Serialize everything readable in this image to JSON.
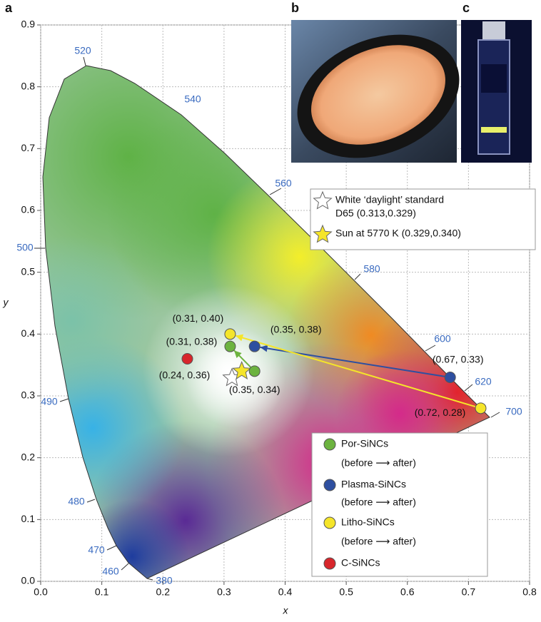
{
  "chart_data": {
    "type": "scatter",
    "panel_labels": [
      "a",
      "b",
      "c"
    ],
    "x_label": "x",
    "y_label": "y",
    "xlim": [
      0,
      0.8
    ],
    "ylim": [
      0,
      0.9
    ],
    "xticks": [
      {
        "value": 0,
        "label": "0.0"
      },
      0.1,
      0.2,
      0.3,
      0.4,
      0.5,
      0.6,
      0.7,
      0.8
    ],
    "yticks": [
      {
        "value": 0,
        "label": "0.0"
      },
      0.1,
      0.2,
      0.3,
      0.4,
      0.5,
      0.6,
      0.7,
      0.8,
      0.9
    ],
    "grid": true,
    "wavelength_labels": [
      "520",
      "540",
      "560",
      "580",
      "600",
      "620",
      "700",
      "500",
      "490",
      "480",
      "470",
      "460",
      "380"
    ],
    "stars": [
      {
        "label_lines": [
          "White ‘daylight’ standard",
          "D65 (0.313,0.329)"
        ],
        "x": 0.313,
        "y": 0.329,
        "color": "#ffffff"
      },
      {
        "label_lines": [
          "Sun at 5770 K (0.329,0.340)"
        ],
        "x": 0.329,
        "y": 0.34,
        "color": "#f5e52a"
      }
    ],
    "series": [
      {
        "name": "Por-SiNCs",
        "sublabel": "(before ⟶ after)",
        "color": "#6cb33f",
        "x": [
          0.35,
          0.31
        ],
        "values": [
          0.34,
          0.38
        ],
        "value_labels": [
          "(0.35, 0.34)",
          "(0.31, 0.38)"
        ]
      },
      {
        "name": "Plasma-SiNCs",
        "sublabel": "(before ⟶ after)",
        "color": "#2e4fa0",
        "x": [
          0.67,
          0.35
        ],
        "values": [
          0.33,
          0.38
        ],
        "value_labels": [
          "(0.67, 0.33)",
          "(0.35, 0.38)"
        ]
      },
      {
        "name": "Litho-SiNCs",
        "sublabel": "(before ⟶ after)",
        "color": "#f5e52a",
        "x": [
          0.72,
          0.31
        ],
        "values": [
          0.28,
          0.4
        ],
        "value_labels": [
          "(0.72, 0.28)",
          "(0.31, 0.40)"
        ]
      },
      {
        "name": "C-SiNCs",
        "color": "#d7262b",
        "x": [
          0.24
        ],
        "values": [
          0.36
        ],
        "value_labels": [
          "(0.24, 0.36)"
        ]
      }
    ]
  }
}
